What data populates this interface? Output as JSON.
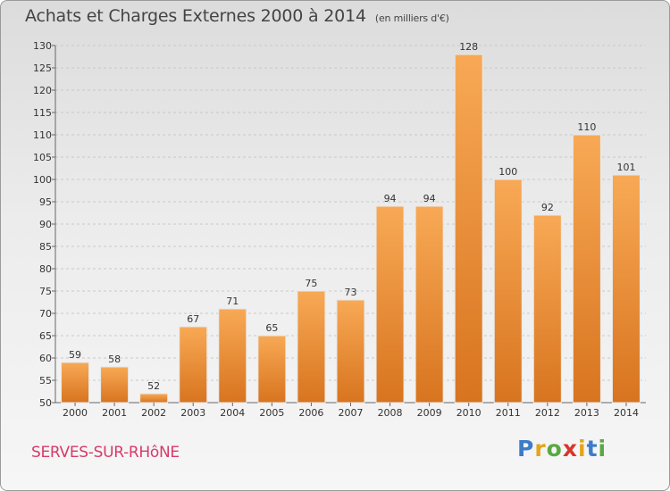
{
  "header": {
    "title": "Achats et Charges Externes 2000 à 2014",
    "subtitle": "(en milliers d'€)"
  },
  "footer": {
    "city": "SERVES-SUR-RHôNE",
    "logo": {
      "letters": [
        "P",
        "r",
        "o",
        "x",
        "i",
        "t",
        "i"
      ],
      "colors": [
        "#3d7cc9",
        "#e5a41a",
        "#5aa843",
        "#d8352b",
        "#e5a41a",
        "#3d7cc9",
        "#5aa843"
      ]
    }
  },
  "colors": {
    "bar_top": "#f8a955",
    "bar_bottom": "#d8741f",
    "bar_stroke": "#e8e8e8",
    "grid": "#c9c9c9"
  },
  "chart_data": {
    "type": "bar",
    "title": "Achats et Charges Externes 2000 à 2014",
    "subtitle": "(en milliers d'€)",
    "categories": [
      "2000",
      "2001",
      "2002",
      "2003",
      "2004",
      "2005",
      "2006",
      "2007",
      "2008",
      "2009",
      "2010",
      "2011",
      "2012",
      "2013",
      "2014"
    ],
    "values": [
      59,
      58,
      52,
      67,
      71,
      65,
      75,
      73,
      94,
      94,
      128,
      100,
      92,
      110,
      101
    ],
    "data_labels": [
      "59",
      "58",
      "52",
      "67",
      "71",
      "65",
      "75",
      "73",
      "94",
      "94",
      "128",
      "100",
      "92",
      "110",
      "101"
    ],
    "xlabel": "",
    "ylabel": "",
    "ylim": [
      50,
      130
    ],
    "yticks": [
      50,
      55,
      60,
      65,
      70,
      75,
      80,
      85,
      90,
      95,
      100,
      105,
      110,
      115,
      120,
      125,
      130
    ],
    "ytick_labels": [
      "50",
      "55",
      "60",
      "65",
      "70",
      "75",
      "80",
      "85",
      "90",
      "95",
      "100",
      "105",
      "110",
      "115",
      "120",
      "125",
      "130"
    ],
    "grid": "horizontal dashed"
  }
}
